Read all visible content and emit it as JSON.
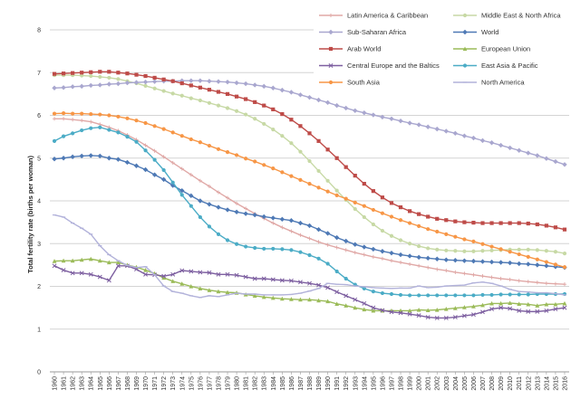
{
  "chart_data": {
    "type": "line",
    "ylabel": "Total fertility rate (births per woman)",
    "xlabel": "",
    "ylim": [
      0,
      8
    ],
    "yticks": [
      0,
      1,
      2,
      3,
      4,
      5,
      6,
      7,
      8
    ],
    "grid": true,
    "legend_position": "top-right",
    "x": [
      "1960",
      "1961",
      "1962",
      "1963",
      "1964",
      "1965",
      "1966",
      "1967",
      "1968",
      "1969",
      "1970",
      "1971",
      "1972",
      "1973",
      "1974",
      "1975",
      "1976",
      "1977",
      "1978",
      "1979",
      "1980",
      "1981",
      "1982",
      "1983",
      "1984",
      "1985",
      "1986",
      "1987",
      "1988",
      "1989",
      "1990",
      "1991",
      "1992",
      "1993",
      "1994",
      "1995",
      "1996",
      "1997",
      "1998",
      "1999",
      "2000",
      "2001",
      "2002",
      "2003",
      "2004",
      "2005",
      "2006",
      "2007",
      "2008",
      "2009",
      "2010",
      "2011",
      "2012",
      "2013",
      "2014",
      "2015",
      "2016"
    ],
    "series": [
      {
        "name": "Latin America & Caribbean",
        "color": "#e0a8a6",
        "marker": "plus",
        "values": [
          5.92,
          5.92,
          5.9,
          5.88,
          5.85,
          5.79,
          5.72,
          5.64,
          5.54,
          5.43,
          5.3,
          5.17,
          5.03,
          4.89,
          4.75,
          4.61,
          4.47,
          4.34,
          4.2,
          4.07,
          3.94,
          3.82,
          3.7,
          3.59,
          3.48,
          3.38,
          3.29,
          3.2,
          3.12,
          3.04,
          2.97,
          2.91,
          2.85,
          2.79,
          2.74,
          2.69,
          2.65,
          2.6,
          2.56,
          2.52,
          2.48,
          2.44,
          2.4,
          2.37,
          2.33,
          2.3,
          2.27,
          2.24,
          2.21,
          2.18,
          2.16,
          2.13,
          2.11,
          2.09,
          2.07,
          2.06,
          2.05
        ]
      },
      {
        "name": "Middle East & North Africa",
        "color": "#c7d9a5",
        "marker": "circle",
        "values": [
          6.94,
          6.94,
          6.94,
          6.93,
          6.92,
          6.9,
          6.88,
          6.85,
          6.8,
          6.75,
          6.69,
          6.63,
          6.57,
          6.51,
          6.46,
          6.4,
          6.35,
          6.29,
          6.23,
          6.17,
          6.1,
          6.02,
          5.92,
          5.8,
          5.67,
          5.52,
          5.35,
          5.15,
          4.93,
          4.7,
          4.47,
          4.24,
          4.02,
          3.81,
          3.62,
          3.45,
          3.3,
          3.18,
          3.08,
          3.0,
          2.94,
          2.89,
          2.86,
          2.84,
          2.83,
          2.82,
          2.82,
          2.83,
          2.84,
          2.85,
          2.86,
          2.86,
          2.86,
          2.85,
          2.83,
          2.81,
          2.77
        ]
      },
      {
        "name": "Sub-Saharan Africa",
        "color": "#a9a7cf",
        "marker": "diamond",
        "values": [
          6.64,
          6.65,
          6.67,
          6.68,
          6.7,
          6.71,
          6.73,
          6.74,
          6.76,
          6.77,
          6.78,
          6.79,
          6.8,
          6.8,
          6.81,
          6.81,
          6.81,
          6.8,
          6.79,
          6.78,
          6.76,
          6.74,
          6.71,
          6.68,
          6.64,
          6.59,
          6.54,
          6.48,
          6.42,
          6.36,
          6.3,
          6.23,
          6.17,
          6.11,
          6.06,
          6.01,
          5.96,
          5.92,
          5.87,
          5.82,
          5.78,
          5.73,
          5.68,
          5.63,
          5.58,
          5.52,
          5.47,
          5.41,
          5.36,
          5.3,
          5.24,
          5.18,
          5.12,
          5.06,
          4.99,
          4.92,
          4.85
        ]
      },
      {
        "name": "World",
        "color": "#4e79b5",
        "marker": "diamond",
        "values": [
          4.98,
          5.0,
          5.03,
          5.05,
          5.06,
          5.05,
          5.0,
          4.97,
          4.9,
          4.82,
          4.73,
          4.61,
          4.5,
          4.36,
          4.24,
          4.12,
          4.0,
          3.92,
          3.85,
          3.79,
          3.74,
          3.7,
          3.67,
          3.63,
          3.6,
          3.57,
          3.54,
          3.48,
          3.42,
          3.33,
          3.24,
          3.14,
          3.06,
          2.98,
          2.92,
          2.87,
          2.82,
          2.78,
          2.74,
          2.71,
          2.68,
          2.66,
          2.64,
          2.62,
          2.61,
          2.6,
          2.59,
          2.58,
          2.57,
          2.56,
          2.55,
          2.53,
          2.52,
          2.5,
          2.48,
          2.46,
          2.44
        ]
      },
      {
        "name": "Arab World",
        "color": "#be4b48",
        "marker": "square",
        "values": [
          6.97,
          6.98,
          6.99,
          7.0,
          7.01,
          7.02,
          7.02,
          7.0,
          6.98,
          6.95,
          6.92,
          6.88,
          6.84,
          6.8,
          6.75,
          6.7,
          6.65,
          6.6,
          6.55,
          6.5,
          6.44,
          6.38,
          6.31,
          6.23,
          6.14,
          6.03,
          5.9,
          5.75,
          5.58,
          5.4,
          5.2,
          5.0,
          4.79,
          4.59,
          4.4,
          4.23,
          4.08,
          3.95,
          3.85,
          3.76,
          3.69,
          3.63,
          3.58,
          3.55,
          3.52,
          3.5,
          3.49,
          3.48,
          3.48,
          3.48,
          3.48,
          3.48,
          3.47,
          3.45,
          3.42,
          3.38,
          3.33
        ]
      },
      {
        "name": "European Union",
        "color": "#9bbb59",
        "marker": "triangle",
        "values": [
          2.59,
          2.6,
          2.6,
          2.62,
          2.64,
          2.6,
          2.56,
          2.56,
          2.5,
          2.45,
          2.38,
          2.3,
          2.2,
          2.12,
          2.06,
          2.0,
          1.95,
          1.91,
          1.88,
          1.86,
          1.85,
          1.81,
          1.78,
          1.75,
          1.73,
          1.71,
          1.7,
          1.69,
          1.69,
          1.67,
          1.65,
          1.59,
          1.55,
          1.5,
          1.46,
          1.43,
          1.43,
          1.43,
          1.43,
          1.43,
          1.45,
          1.44,
          1.45,
          1.47,
          1.49,
          1.51,
          1.53,
          1.56,
          1.6,
          1.6,
          1.61,
          1.59,
          1.58,
          1.55,
          1.58,
          1.58,
          1.6
        ]
      },
      {
        "name": "Central Europe and the Baltics",
        "color": "#7d5fa0",
        "marker": "x",
        "values": [
          2.48,
          2.38,
          2.31,
          2.31,
          2.28,
          2.22,
          2.14,
          2.48,
          2.48,
          2.4,
          2.28,
          2.27,
          2.24,
          2.28,
          2.37,
          2.35,
          2.33,
          2.32,
          2.28,
          2.28,
          2.26,
          2.22,
          2.18,
          2.18,
          2.16,
          2.14,
          2.13,
          2.1,
          2.07,
          2.03,
          1.97,
          1.87,
          1.78,
          1.69,
          1.6,
          1.5,
          1.44,
          1.4,
          1.38,
          1.35,
          1.32,
          1.28,
          1.26,
          1.26,
          1.28,
          1.31,
          1.34,
          1.4,
          1.47,
          1.5,
          1.48,
          1.43,
          1.41,
          1.41,
          1.43,
          1.47,
          1.5
        ]
      },
      {
        "name": "East Asia & Pacific",
        "color": "#4bacc6",
        "marker": "circle",
        "values": [
          5.4,
          5.51,
          5.58,
          5.65,
          5.7,
          5.72,
          5.66,
          5.6,
          5.5,
          5.38,
          5.18,
          4.96,
          4.72,
          4.43,
          4.14,
          3.88,
          3.62,
          3.4,
          3.22,
          3.08,
          2.99,
          2.93,
          2.9,
          2.88,
          2.88,
          2.87,
          2.85,
          2.8,
          2.73,
          2.65,
          2.53,
          2.35,
          2.18,
          2.04,
          1.95,
          1.88,
          1.84,
          1.82,
          1.8,
          1.79,
          1.79,
          1.79,
          1.79,
          1.79,
          1.79,
          1.79,
          1.79,
          1.8,
          1.8,
          1.81,
          1.81,
          1.81,
          1.81,
          1.82,
          1.82,
          1.82,
          1.82
        ]
      },
      {
        "name": "South Asia",
        "color": "#f79646",
        "marker": "circle",
        "values": [
          6.04,
          6.05,
          6.04,
          6.04,
          6.03,
          6.02,
          6.0,
          5.97,
          5.93,
          5.88,
          5.82,
          5.75,
          5.68,
          5.6,
          5.52,
          5.44,
          5.37,
          5.29,
          5.21,
          5.14,
          5.07,
          4.99,
          4.92,
          4.84,
          4.76,
          4.67,
          4.58,
          4.49,
          4.4,
          4.31,
          4.22,
          4.13,
          4.05,
          3.96,
          3.88,
          3.79,
          3.71,
          3.63,
          3.55,
          3.48,
          3.41,
          3.34,
          3.28,
          3.22,
          3.16,
          3.1,
          3.05,
          2.99,
          2.93,
          2.87,
          2.81,
          2.75,
          2.69,
          2.63,
          2.57,
          2.51,
          2.45
        ]
      },
      {
        "name": "North America",
        "color": "#b2b2da",
        "marker": "dash",
        "values": [
          3.67,
          3.62,
          3.48,
          3.36,
          3.22,
          2.95,
          2.74,
          2.6,
          2.49,
          2.44,
          2.46,
          2.27,
          2.01,
          1.88,
          1.84,
          1.78,
          1.74,
          1.78,
          1.76,
          1.8,
          1.84,
          1.82,
          1.82,
          1.8,
          1.8,
          1.8,
          1.81,
          1.84,
          1.89,
          1.95,
          2.07,
          2.05,
          2.04,
          2.01,
          1.99,
          1.97,
          1.96,
          1.95,
          1.96,
          1.96,
          2.01,
          1.97,
          1.98,
          2.01,
          2.02,
          2.03,
          2.08,
          2.1,
          2.07,
          2.01,
          1.93,
          1.88,
          1.87,
          1.85,
          1.85,
          1.83,
          1.8
        ]
      }
    ]
  }
}
